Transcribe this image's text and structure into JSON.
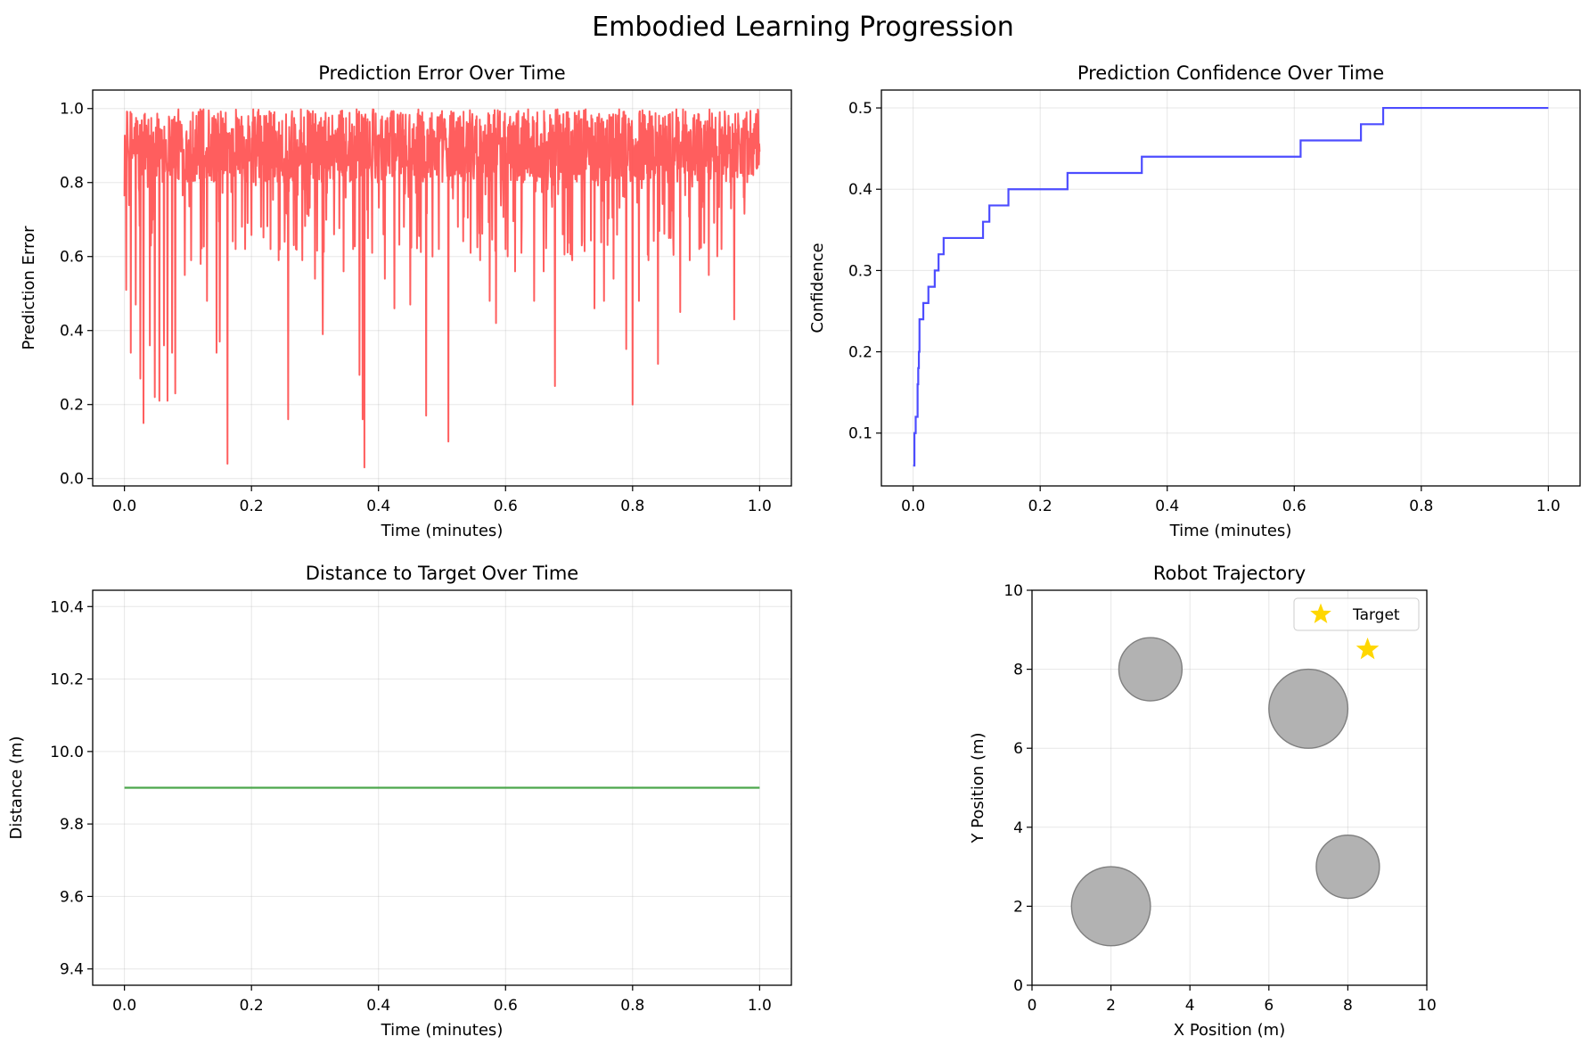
{
  "figure": {
    "title": "Embodied Learning Progression"
  },
  "chart_data": [
    {
      "id": "error",
      "type": "line",
      "title": "Prediction Error Over Time",
      "xlabel": "Time (minutes)",
      "ylabel": "Prediction Error",
      "xlim": [
        -0.05,
        1.05
      ],
      "ylim": [
        -0.02,
        1.05
      ],
      "xticks": [
        "0.0",
        "0.2",
        "0.4",
        "0.6",
        "0.8",
        "1.0"
      ],
      "yticks": [
        "0.0",
        "0.2",
        "0.4",
        "0.6",
        "0.8",
        "1.0"
      ],
      "grid": true,
      "series": [
        {
          "color": "#ff4d4d",
          "x_range": [
            0.0,
            1.0
          ],
          "baseline": [
            0.6,
            1.0
          ],
          "dips": [
            [
              0.003,
              0.51
            ],
            [
              0.01,
              0.34
            ],
            [
              0.018,
              0.47
            ],
            [
              0.025,
              0.27
            ],
            [
              0.03,
              0.15
            ],
            [
              0.04,
              0.36
            ],
            [
              0.048,
              0.22
            ],
            [
              0.055,
              0.21
            ],
            [
              0.062,
              0.36
            ],
            [
              0.068,
              0.21
            ],
            [
              0.075,
              0.34
            ],
            [
              0.08,
              0.23
            ],
            [
              0.095,
              0.55
            ],
            [
              0.105,
              0.59
            ],
            [
              0.12,
              0.58
            ],
            [
              0.13,
              0.48
            ],
            [
              0.145,
              0.34
            ],
            [
              0.15,
              0.37
            ],
            [
              0.162,
              0.04
            ],
            [
              0.175,
              0.62
            ],
            [
              0.19,
              0.62
            ],
            [
              0.215,
              0.68
            ],
            [
              0.23,
              0.62
            ],
            [
              0.243,
              0.59
            ],
            [
              0.258,
              0.16
            ],
            [
              0.27,
              0.62
            ],
            [
              0.28,
              0.59
            ],
            [
              0.29,
              0.71
            ],
            [
              0.3,
              0.54
            ],
            [
              0.312,
              0.39
            ],
            [
              0.33,
              0.66
            ],
            [
              0.345,
              0.56
            ],
            [
              0.36,
              0.62
            ],
            [
              0.37,
              0.28
            ],
            [
              0.375,
              0.16
            ],
            [
              0.378,
              0.03
            ],
            [
              0.39,
              0.61
            ],
            [
              0.41,
              0.54
            ],
            [
              0.425,
              0.46
            ],
            [
              0.44,
              0.68
            ],
            [
              0.45,
              0.47
            ],
            [
              0.475,
              0.17
            ],
            [
              0.485,
              0.6
            ],
            [
              0.495,
              0.62
            ],
            [
              0.51,
              0.1
            ],
            [
              0.525,
              0.68
            ],
            [
              0.545,
              0.61
            ],
            [
              0.56,
              0.59
            ],
            [
              0.575,
              0.48
            ],
            [
              0.585,
              0.42
            ],
            [
              0.6,
              0.62
            ],
            [
              0.615,
              0.56
            ],
            [
              0.625,
              0.61
            ],
            [
              0.645,
              0.48
            ],
            [
              0.66,
              0.56
            ],
            [
              0.678,
              0.25
            ],
            [
              0.69,
              0.66
            ],
            [
              0.705,
              0.59
            ],
            [
              0.72,
              0.63
            ],
            [
              0.74,
              0.46
            ],
            [
              0.755,
              0.48
            ],
            [
              0.77,
              0.54
            ],
            [
              0.79,
              0.35
            ],
            [
              0.8,
              0.2
            ],
            [
              0.81,
              0.48
            ],
            [
              0.825,
              0.59
            ],
            [
              0.84,
              0.31
            ],
            [
              0.86,
              0.65
            ],
            [
              0.875,
              0.45
            ],
            [
              0.89,
              0.59
            ],
            [
              0.905,
              0.62
            ],
            [
              0.92,
              0.55
            ],
            [
              0.94,
              0.62
            ],
            [
              0.955,
              0.73
            ],
            [
              0.96,
              0.43
            ],
            [
              0.975,
              0.76
            ],
            [
              0.99,
              0.82
            ]
          ]
        }
      ]
    },
    {
      "id": "confidence",
      "type": "line",
      "title": "Prediction Confidence Over Time",
      "xlabel": "Time (minutes)",
      "ylabel": "Confidence",
      "xlim": [
        -0.05,
        1.05
      ],
      "ylim": [
        0.035,
        0.522
      ],
      "xticks": [
        "0.0",
        "0.2",
        "0.4",
        "0.6",
        "0.8",
        "1.0"
      ],
      "yticks": [
        "0.1",
        "0.2",
        "0.3",
        "0.4",
        "0.5"
      ],
      "grid": true,
      "series": [
        {
          "color": "#4d4dff",
          "step": "post",
          "x": [
            0.0,
            0.002,
            0.004,
            0.007,
            0.008,
            0.009,
            0.01,
            0.016,
            0.024,
            0.034,
            0.04,
            0.048,
            0.11,
            0.12,
            0.15,
            0.243,
            0.36,
            0.61,
            0.705,
            0.74,
            1.0
          ],
          "y": [
            0.06,
            0.1,
            0.12,
            0.16,
            0.18,
            0.2,
            0.24,
            0.26,
            0.28,
            0.3,
            0.32,
            0.34,
            0.36,
            0.38,
            0.4,
            0.42,
            0.44,
            0.46,
            0.48,
            0.5,
            0.5
          ]
        }
      ]
    },
    {
      "id": "distance",
      "type": "line",
      "title": "Distance to Target Over Time",
      "xlabel": "Time (minutes)",
      "ylabel": "Distance (m)",
      "xlim": [
        -0.05,
        1.05
      ],
      "ylim": [
        9.355,
        10.445
      ],
      "xticks": [
        "0.0",
        "0.2",
        "0.4",
        "0.6",
        "0.8",
        "1.0"
      ],
      "yticks": [
        "9.4",
        "9.6",
        "9.8",
        "10.0",
        "10.2",
        "10.4"
      ],
      "grid": true,
      "series": [
        {
          "color": "#4ca64c",
          "x": [
            0.0,
            1.0
          ],
          "y": [
            9.9,
            9.9
          ]
        }
      ]
    },
    {
      "id": "trajectory",
      "type": "scatter",
      "title": "Robot Trajectory",
      "xlabel": "X Position (m)",
      "ylabel": "Y Position (m)",
      "xlim": [
        0,
        10
      ],
      "ylim": [
        0,
        10
      ],
      "xticks": [
        "0",
        "2",
        "4",
        "6",
        "8",
        "10"
      ],
      "yticks": [
        "0",
        "2",
        "4",
        "6",
        "8",
        "10"
      ],
      "grid": true,
      "legend": {
        "position": "top-right",
        "entries": [
          "Target"
        ]
      },
      "target": {
        "x": 8.5,
        "y": 8.5,
        "color": "#ffd700",
        "marker": "star"
      },
      "obstacles": [
        {
          "x": 2,
          "y": 2,
          "r": 1.0
        },
        {
          "x": 3,
          "y": 8,
          "r": 0.8
        },
        {
          "x": 7,
          "y": 7,
          "r": 1.0
        },
        {
          "x": 8,
          "y": 3,
          "r": 0.8
        }
      ],
      "obstacle_color": "#b2b2b2"
    }
  ]
}
